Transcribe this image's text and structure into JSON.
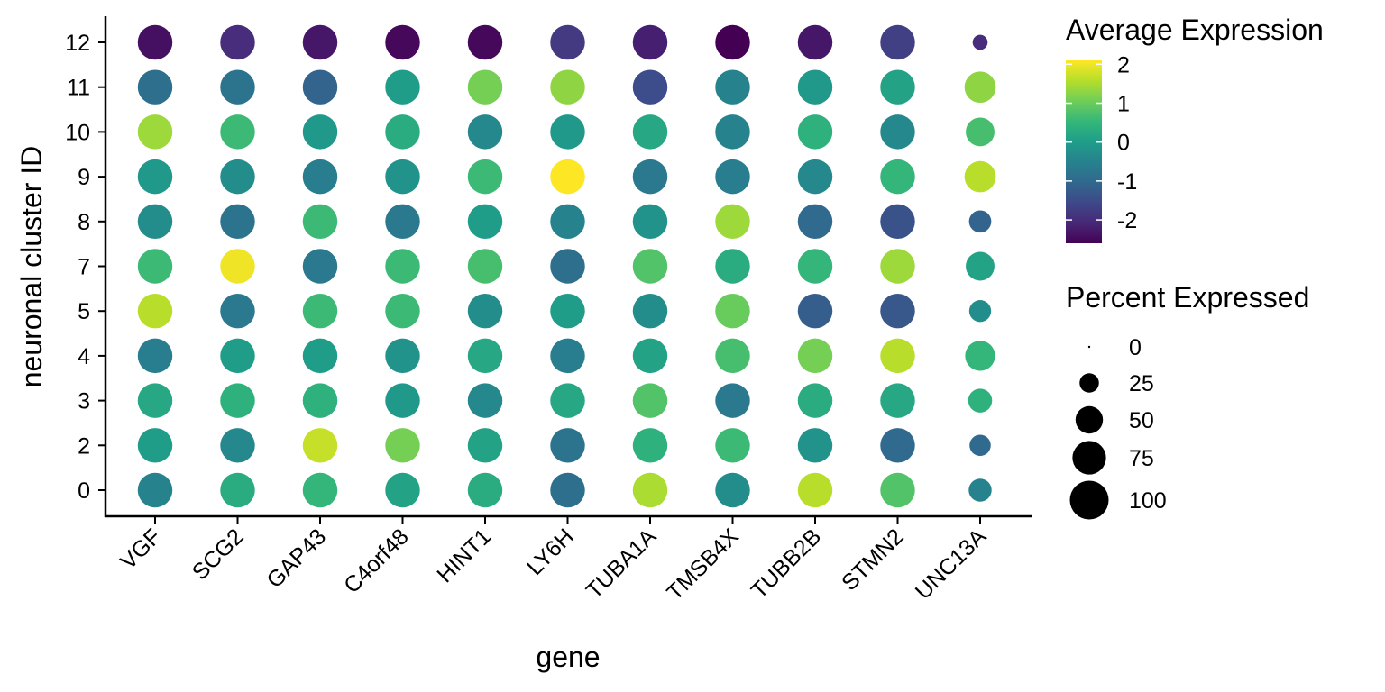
{
  "chart_data": {
    "type": "dotplot",
    "xlabel": "gene",
    "ylabel": "neuronal cluster ID",
    "genes": [
      "VGF",
      "SCG2",
      "GAP43",
      "C4orf48",
      "HINT1",
      "LY6H",
      "TUBA1A",
      "TMSB4X",
      "TUBB2B",
      "STMN2",
      "UNC13A"
    ],
    "clusters": [
      "0",
      "2",
      "3",
      "4",
      "5",
      "7",
      "8",
      "9",
      "10",
      "11",
      "12"
    ],
    "avg_expression": [
      [
        -0.5,
        0.3,
        0.5,
        0.1,
        0.3,
        -0.9,
        1.5,
        -0.3,
        1.6,
        0.8,
        -0.5
      ],
      [
        0.0,
        -0.4,
        1.7,
        1.1,
        0.1,
        -0.8,
        0.4,
        0.6,
        -0.2,
        -1.0,
        -1.0
      ],
      [
        0.2,
        0.4,
        0.4,
        -0.1,
        -0.4,
        0.2,
        0.8,
        -0.7,
        0.3,
        0.2,
        0.4
      ],
      [
        -0.6,
        0.0,
        0.0,
        -0.2,
        0.2,
        -0.6,
        0.1,
        0.7,
        1.1,
        1.6,
        0.5
      ],
      [
        1.6,
        -0.7,
        0.6,
        0.6,
        -0.3,
        0.0,
        -0.3,
        1.0,
        -1.2,
        -1.3,
        -0.3
      ],
      [
        0.6,
        2.0,
        -0.7,
        0.6,
        0.7,
        -0.9,
        0.8,
        0.3,
        0.5,
        1.4,
        0.1
      ],
      [
        -0.3,
        -0.8,
        0.6,
        -0.7,
        0.0,
        -0.5,
        -0.2,
        1.4,
        -1.0,
        -1.4,
        -1.1
      ],
      [
        -0.1,
        -0.3,
        -0.6,
        -0.2,
        0.6,
        2.1,
        -0.7,
        -0.6,
        -0.4,
        0.5,
        1.6
      ],
      [
        1.4,
        0.6,
        -0.1,
        0.3,
        -0.4,
        -0.1,
        0.2,
        -0.5,
        0.4,
        -0.4,
        0.7
      ],
      [
        -0.9,
        -0.8,
        -1.1,
        0.0,
        1.1,
        1.3,
        -1.5,
        -0.5,
        -0.1,
        0.1,
        1.3
      ],
      [
        -2.4,
        -2.0,
        -2.3,
        -2.5,
        -2.5,
        -1.8,
        -2.2,
        -2.6,
        -2.3,
        -1.7,
        -2.0
      ]
    ],
    "pct_expressed": [
      [
        80,
        80,
        80,
        80,
        80,
        80,
        80,
        80,
        80,
        80,
        35
      ],
      [
        80,
        80,
        80,
        80,
        80,
        80,
        80,
        80,
        80,
        80,
        30
      ],
      [
        80,
        80,
        80,
        80,
        80,
        80,
        80,
        80,
        80,
        80,
        38
      ],
      [
        80,
        80,
        80,
        80,
        80,
        80,
        80,
        80,
        80,
        80,
        60
      ],
      [
        80,
        80,
        80,
        80,
        80,
        80,
        80,
        80,
        80,
        80,
        32
      ],
      [
        80,
        80,
        80,
        80,
        80,
        80,
        80,
        80,
        80,
        80,
        55
      ],
      [
        80,
        80,
        80,
        80,
        80,
        80,
        80,
        80,
        80,
        80,
        33
      ],
      [
        80,
        80,
        80,
        80,
        80,
        80,
        80,
        80,
        80,
        80,
        65
      ],
      [
        80,
        80,
        80,
        80,
        80,
        80,
        80,
        80,
        80,
        80,
        55
      ],
      [
        80,
        80,
        80,
        80,
        80,
        80,
        80,
        80,
        80,
        80,
        65
      ],
      [
        80,
        80,
        80,
        80,
        80,
        80,
        80,
        80,
        80,
        80,
        15
      ]
    ],
    "color_scale": {
      "title": "Average Expression",
      "name": "viridis",
      "range": [
        -2.6,
        2.1
      ],
      "ticks": [
        2,
        1,
        0,
        -1,
        -2
      ],
      "tick_labels": [
        "2",
        "1",
        "0",
        "-1",
        "-2"
      ]
    },
    "size_scale": {
      "title": "Percent Expressed",
      "values": [
        0,
        25,
        50,
        75,
        100
      ],
      "labels": [
        "0",
        "25",
        "50",
        "75",
        "100"
      ]
    },
    "grid": false,
    "legend_position": "right"
  },
  "colors": {
    "viridis_stops": [
      "#440154",
      "#482878",
      "#3e4989",
      "#31688e",
      "#26828e",
      "#1f9e89",
      "#35b779",
      "#6ece58",
      "#b5de2b",
      "#fde725"
    ],
    "axis": "#000000",
    "text": "#000000",
    "background": "#ffffff",
    "size_legend_fill": "#000000"
  }
}
